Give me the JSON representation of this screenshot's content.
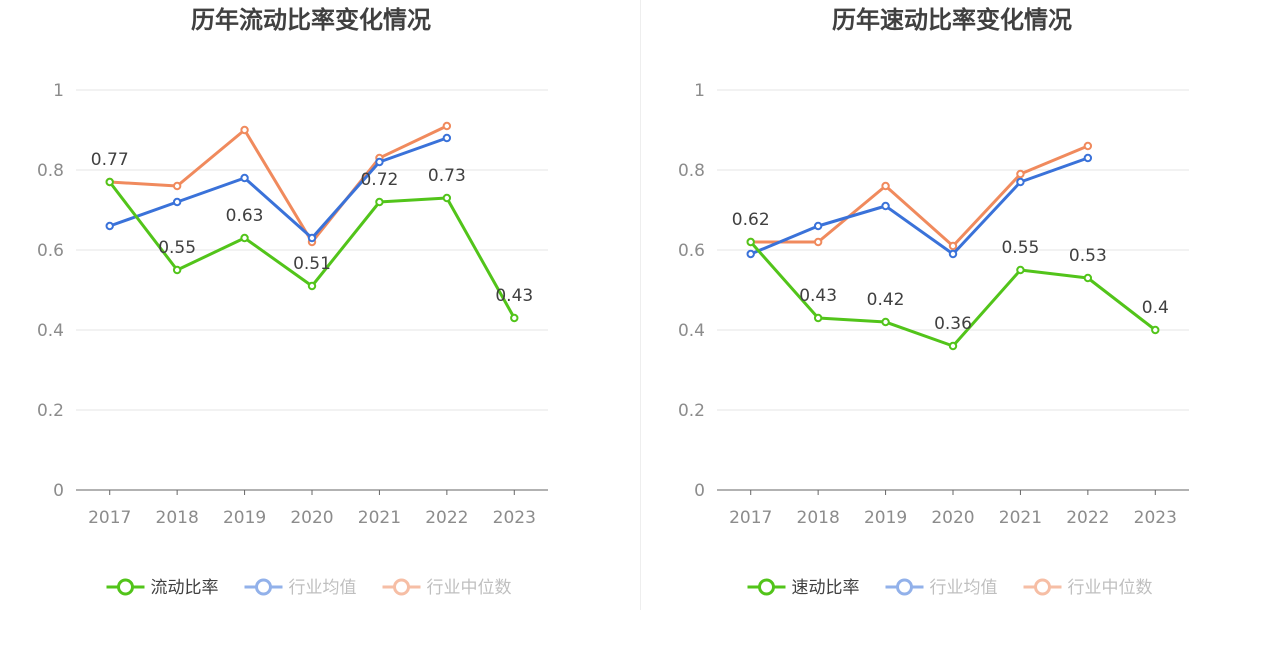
{
  "colors": {
    "primary": "#52c41a",
    "avg": "#3a72d9",
    "median": "#f08a5d",
    "grid": "#e6e6e6",
    "axis": "#666666"
  },
  "chart_data": [
    {
      "type": "line",
      "title": "历年流动比率变化情况",
      "categories": [
        "2017",
        "2018",
        "2019",
        "2020",
        "2021",
        "2022",
        "2023"
      ],
      "ylim": [
        0,
        1
      ],
      "yticks": [
        "0",
        "0.2",
        "0.4",
        "0.6",
        "0.8",
        "1"
      ],
      "grid": true,
      "legend_position": "bottom",
      "series": [
        {
          "name": "流动比率",
          "role": "primary",
          "values": [
            0.77,
            0.55,
            0.63,
            0.51,
            0.72,
            0.73,
            0.43
          ]
        },
        {
          "name": "行业均值",
          "role": "avg",
          "values": [
            0.66,
            0.72,
            0.78,
            0.63,
            0.82,
            0.88,
            null
          ]
        },
        {
          "name": "行业中位数",
          "role": "median",
          "values": [
            0.77,
            0.76,
            0.9,
            0.62,
            0.83,
            0.91,
            null
          ]
        }
      ],
      "data_labels": [
        "0.77",
        "0.55",
        "0.63",
        "0.51",
        "0.72",
        "0.73",
        "0.43"
      ]
    },
    {
      "type": "line",
      "title": "历年速动比率变化情况",
      "categories": [
        "2017",
        "2018",
        "2019",
        "2020",
        "2021",
        "2022",
        "2023"
      ],
      "ylim": [
        0,
        1
      ],
      "yticks": [
        "0",
        "0.2",
        "0.4",
        "0.6",
        "0.8",
        "1"
      ],
      "grid": true,
      "legend_position": "bottom",
      "series": [
        {
          "name": "速动比率",
          "role": "primary",
          "values": [
            0.62,
            0.43,
            0.42,
            0.36,
            0.55,
            0.53,
            0.4
          ]
        },
        {
          "name": "行业均值",
          "role": "avg",
          "values": [
            0.59,
            0.66,
            0.71,
            0.59,
            0.77,
            0.83,
            null
          ]
        },
        {
          "name": "行业中位数",
          "role": "median",
          "values": [
            0.62,
            0.62,
            0.76,
            0.61,
            0.79,
            0.86,
            null
          ]
        }
      ],
      "data_labels": [
        "0.62",
        "0.43",
        "0.42",
        "0.36",
        "0.55",
        "0.53",
        "0.4"
      ]
    }
  ]
}
